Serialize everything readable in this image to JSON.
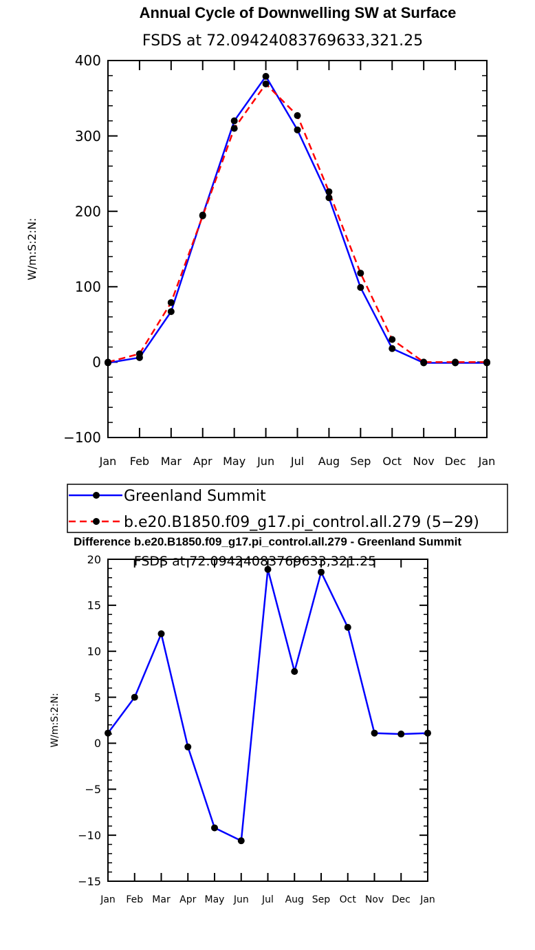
{
  "chart_data": [
    {
      "type": "line",
      "title": "Annual Cycle of Downwelling SW at Surface",
      "subtitle": "FSDS at 72.09424083769633,321.25",
      "xlabel": "",
      "ylabel": "W/m:S:2:N:",
      "categories": [
        "Jan",
        "Feb",
        "Mar",
        "Apr",
        "May",
        "Jun",
        "Jul",
        "Aug",
        "Sep",
        "Oct",
        "Nov",
        "Dec",
        "Jan"
      ],
      "ylim": [
        -100,
        400
      ],
      "yticks": [
        -100,
        0,
        100,
        200,
        300,
        400
      ],
      "grid": false,
      "legend": "bottom",
      "series": [
        {
          "name": "Greenland Summit",
          "color": "#0000ff",
          "dash": "solid",
          "values": [
            -1,
            6,
            67,
            195,
            320,
            379,
            308,
            218,
            99,
            18,
            -1,
            -1,
            -1
          ]
        },
        {
          "name": "b.e20.B1850.f09_g17.pi_control.all.279 (5−29)",
          "color": "#ff0000",
          "dash": "dashed",
          "values": [
            0,
            11,
            79,
            194,
            310,
            369,
            327,
            226,
            118,
            30,
            0,
            0,
            0
          ]
        }
      ]
    },
    {
      "type": "line",
      "title": "Difference b.e20.B1850.f09_g17.pi_control.all.279 - Greenland Summit",
      "subtitle": "FSDS at 72.09424083769633,321.25",
      "xlabel": "",
      "ylabel": "W/m:S:2:N:",
      "categories": [
        "Jan",
        "Feb",
        "Mar",
        "Apr",
        "May",
        "Jun",
        "Jul",
        "Aug",
        "Sep",
        "Oct",
        "Nov",
        "Dec",
        "Jan"
      ],
      "ylim": [
        -15,
        20
      ],
      "yticks": [
        -15,
        -10,
        -5,
        0,
        5,
        10,
        15,
        20
      ],
      "grid": false,
      "series": [
        {
          "color": "#0000ff",
          "dash": "solid",
          "values": [
            1.1,
            5.0,
            11.9,
            -0.4,
            -9.2,
            -10.6,
            18.9,
            7.8,
            18.6,
            12.6,
            1.1,
            1.0,
            1.1
          ]
        }
      ]
    }
  ]
}
